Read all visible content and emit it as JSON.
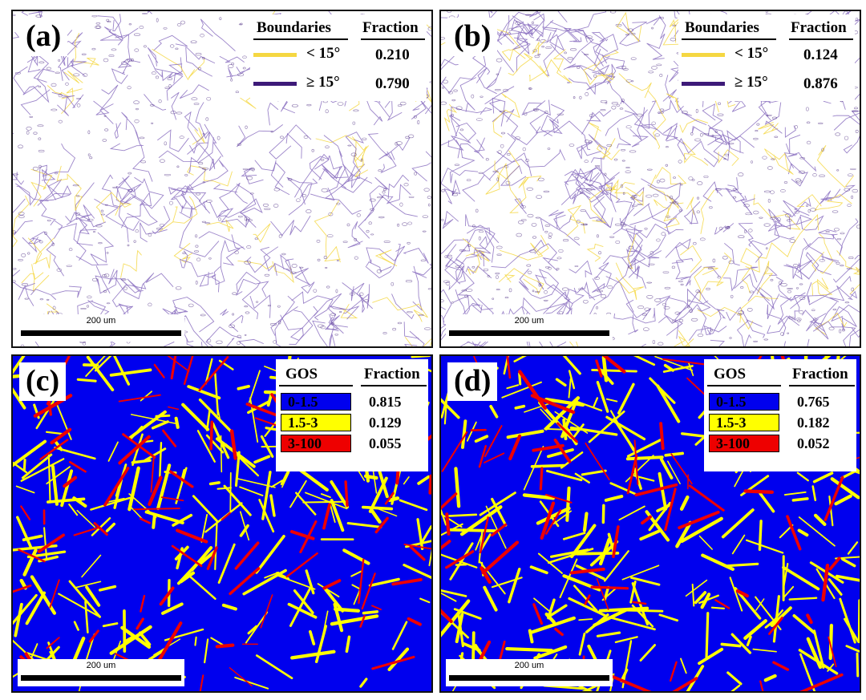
{
  "panels": {
    "a": {
      "label": "(a)",
      "legend": {
        "header_boundaries": "Boundaries",
        "header_fraction": "Fraction",
        "rows": [
          {
            "label": "< 15°",
            "fraction": "0.210",
            "color": "#f5d742"
          },
          {
            "label": "≥ 15°",
            "fraction": "0.790",
            "color": "#3d1a78"
          }
        ]
      },
      "scale": "200 um"
    },
    "b": {
      "label": "(b)",
      "legend": {
        "header_boundaries": "Boundaries",
        "header_fraction": "Fraction",
        "rows": [
          {
            "label": "< 15°",
            "fraction": "0.124",
            "color": "#f5d742"
          },
          {
            "label": "≥ 15°",
            "fraction": "0.876",
            "color": "#3d1a78"
          }
        ]
      },
      "scale": "200 um"
    },
    "c": {
      "label": "(c)",
      "legend": {
        "header_gos": "GOS",
        "header_fraction": "Fraction",
        "rows": [
          {
            "label": "0-1.5",
            "fraction": "0.815",
            "color": "#0000ee"
          },
          {
            "label": "1.5-3",
            "fraction": "0.129",
            "color": "#ffff00"
          },
          {
            "label": "3-100",
            "fraction": "0.055",
            "color": "#ee0000"
          }
        ]
      },
      "scale": "200 um"
    },
    "d": {
      "label": "(d)",
      "legend": {
        "header_gos": "GOS",
        "header_fraction": "Fraction",
        "rows": [
          {
            "label": "0-1.5",
            "fraction": "0.765",
            "color": "#0000ee"
          },
          {
            "label": "1.5-3",
            "fraction": "0.182",
            "color": "#ffff00"
          },
          {
            "label": "3-100",
            "fraction": "0.052",
            "color": "#ee0000"
          }
        ]
      },
      "scale": "200 um"
    }
  },
  "colors": {
    "low_angle": "#f5d742",
    "high_angle": "#3d1a78",
    "gos_low": "#0000ee",
    "gos_mid": "#ffff00",
    "gos_high": "#ee0000"
  }
}
